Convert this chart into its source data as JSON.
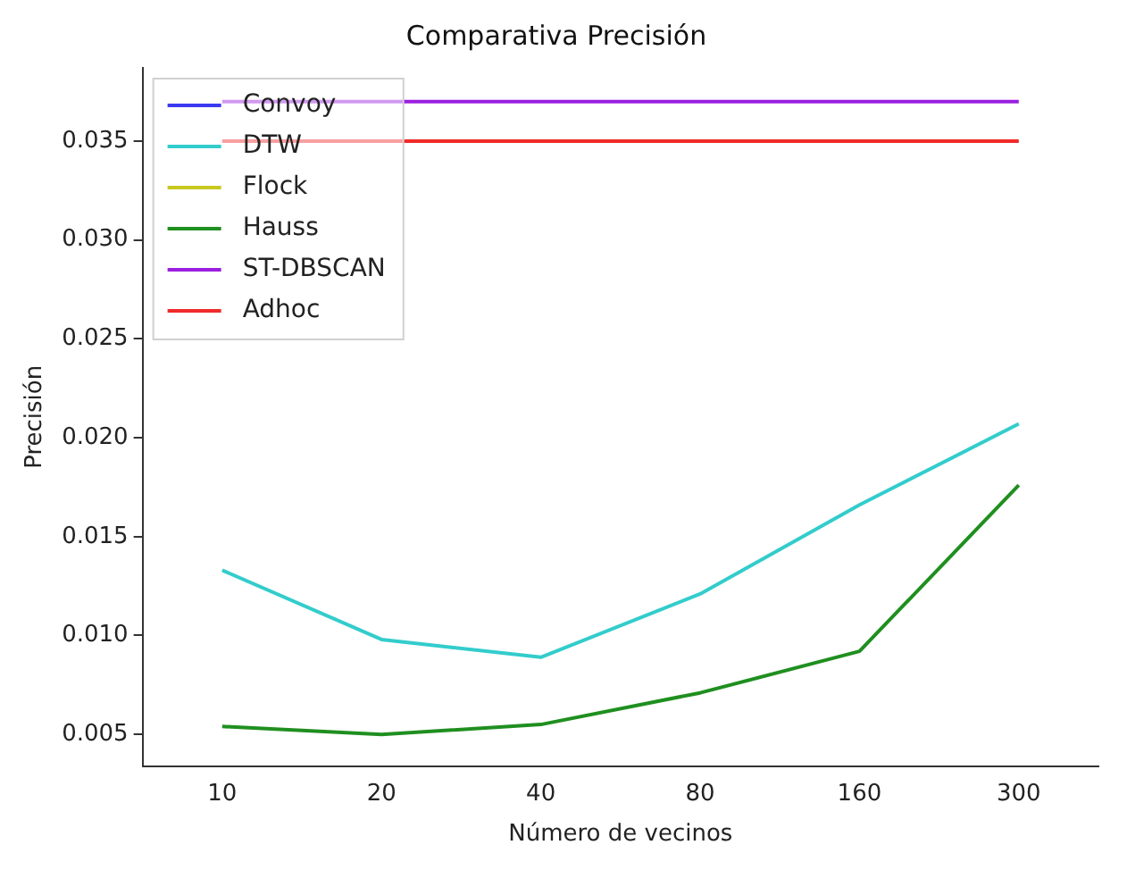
{
  "chart_data": {
    "type": "line",
    "title": "Comparativa Precisión",
    "xlabel": "Número de vecinos",
    "ylabel": "Precisión",
    "categories": [
      "10",
      "20",
      "40",
      "80",
      "160",
      "300"
    ],
    "series": [
      {
        "name": "Convoy",
        "color": "#3a3af0",
        "values": [
          null,
          null,
          null,
          null,
          null,
          null
        ]
      },
      {
        "name": "DTW",
        "color": "#33cccc",
        "values": [
          0.0133,
          0.0098,
          0.0089,
          0.0121,
          0.0166,
          0.0207
        ]
      },
      {
        "name": "Flock",
        "color": "#c8c820",
        "values": [
          null,
          null,
          null,
          null,
          null,
          null
        ]
      },
      {
        "name": "Hauss",
        "color": "#1f8f1f",
        "values": [
          0.0054,
          0.005,
          0.0055,
          0.0071,
          0.0092,
          0.0176
        ]
      },
      {
        "name": "ST-DBSCAN",
        "color": "#9a1ee0",
        "values": [
          0.037,
          0.037,
          0.037,
          0.037,
          0.037,
          0.037
        ]
      },
      {
        "name": "Adhoc",
        "color": "#f02a2a",
        "values": [
          0.035,
          0.035,
          0.035,
          0.035,
          0.035,
          0.035
        ]
      }
    ],
    "ylim": [
      0.0034,
      0.0387
    ],
    "yticks": [
      {
        "value": 0.005,
        "label": "0.005"
      },
      {
        "value": 0.01,
        "label": "0.010"
      },
      {
        "value": 0.015,
        "label": "0.015"
      },
      {
        "value": 0.02,
        "label": "0.020"
      },
      {
        "value": 0.025,
        "label": "0.025"
      },
      {
        "value": 0.03,
        "label": "0.030"
      },
      {
        "value": 0.035,
        "label": "0.035"
      }
    ],
    "grid": false,
    "legend": "top left",
    "marker": "none",
    "line_style": "solid"
  }
}
